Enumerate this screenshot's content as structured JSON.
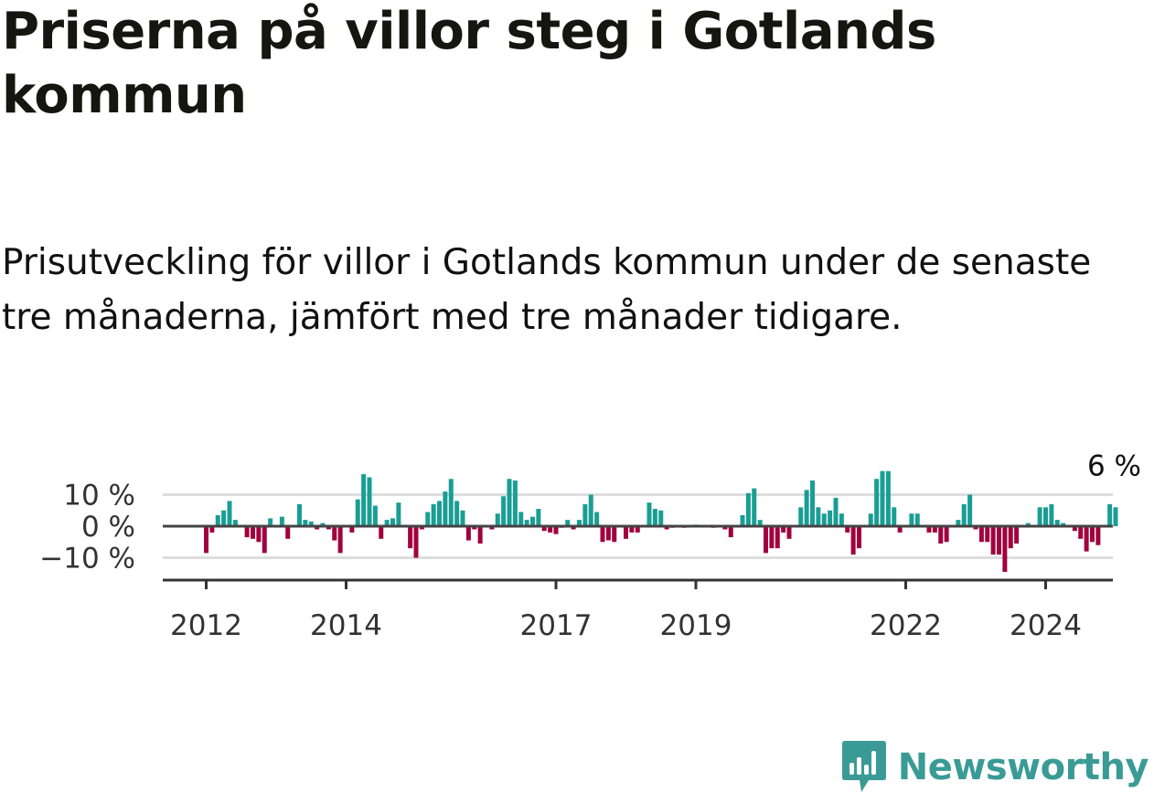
{
  "header": {
    "title": "Priserna på villor steg i Gotlands kommun",
    "subtitle": "Prisutveckling för villor i Gotlands kommun under de senaste tre månaderna, jämfört med tre månader tidigare."
  },
  "brand": {
    "name": "Newsworthy",
    "icon": "newsworthy-logo-icon",
    "color": "#3a9b96"
  },
  "colors": {
    "positive": "#1a9e94",
    "negative": "#a1003e",
    "zero_line": "#444444",
    "grid": "#dddddd"
  },
  "chart_data": {
    "type": "bar",
    "ylabel": "",
    "ylim": [
      -17,
      18
    ],
    "y_ticks": [
      {
        "value": 10,
        "label": "10 %"
      },
      {
        "value": 0,
        "label": "0 %"
      },
      {
        "value": -10,
        "label": "−10 %"
      }
    ],
    "x_ticks": [
      {
        "year": 2012,
        "label": "2012"
      },
      {
        "year": 2014,
        "label": "2014"
      },
      {
        "year": 2017,
        "label": "2017"
      },
      {
        "year": 2019,
        "label": "2019"
      },
      {
        "year": 2022,
        "label": "2022"
      },
      {
        "year": 2024,
        "label": "2024"
      }
    ],
    "start": "2012-01",
    "values": [
      -8.5,
      -2,
      3.5,
      5,
      8,
      2,
      0,
      -3.5,
      -4,
      -5,
      -8.5,
      2.5,
      0,
      3,
      -4,
      0,
      7,
      2,
      1.5,
      -1,
      1,
      -1,
      -4.5,
      -8.5,
      0,
      -2,
      8.5,
      16.5,
      15.5,
      6.5,
      -4,
      2,
      2.5,
      7.5,
      0,
      -7,
      -10,
      -1,
      4.5,
      7,
      8,
      11,
      15,
      8,
      5,
      -4.5,
      -1,
      -5.5,
      0,
      -1,
      4,
      9.5,
      15,
      14.5,
      4.5,
      2,
      3,
      5.5,
      -1.5,
      -2,
      -2.5,
      -0.5,
      2,
      -1,
      2,
      7,
      10,
      4.5,
      -5,
      -4.5,
      -5,
      0,
      -4,
      -2,
      -2,
      0,
      7.5,
      5.5,
      5,
      -1,
      -0.5,
      0,
      -0.5,
      0,
      0.5,
      0,
      0,
      -0.5,
      0,
      -1,
      -3.5,
      0,
      3.5,
      10.5,
      12,
      2,
      -8.5,
      -7,
      -7,
      -2,
      -4,
      0,
      6,
      11.5,
      14.5,
      6,
      4,
      5,
      9,
      4,
      -2,
      -9,
      -7,
      0,
      4,
      15,
      17.5,
      17.5,
      6,
      -2,
      0,
      4,
      4,
      0,
      -2,
      -2,
      -5.5,
      -5,
      0,
      2,
      7,
      10,
      -1,
      -5,
      -5,
      -9,
      -9,
      -14.5,
      -7,
      -5.5,
      0,
      1,
      0,
      6,
      6,
      7,
      2,
      1,
      0,
      -1.5,
      -4,
      -8,
      -5,
      -6,
      0,
      7,
      6
    ],
    "annotation": {
      "label": "6 %"
    }
  }
}
